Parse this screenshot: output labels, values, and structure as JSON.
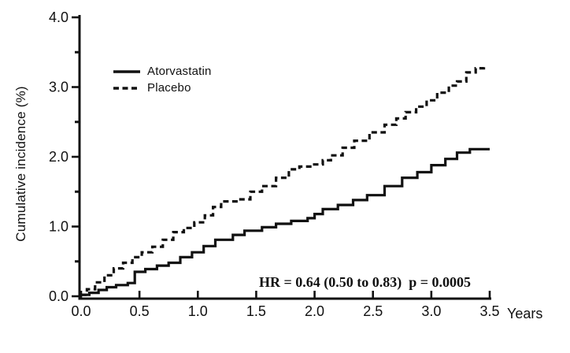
{
  "chart_data": {
    "type": "line",
    "step": true,
    "title": "",
    "xlabel": "Years",
    "ylabel": "Cumulative incidence (%)",
    "annotation": "HR = 0.64 (0.50 to 0.83)  p = 0.0005",
    "xlim": [
      0,
      3.5
    ],
    "ylim": [
      0,
      4.0
    ],
    "x_ticks": [
      0.0,
      0.5,
      1.0,
      1.5,
      2.0,
      2.5,
      3.0,
      3.5
    ],
    "y_ticks": [
      0.0,
      1.0,
      2.0,
      3.0,
      4.0
    ],
    "y_minor_ticks": [
      0.5,
      1.5,
      2.5,
      3.5
    ],
    "grid": false,
    "legend_position": "upper-left-inside",
    "line_color": "#111111",
    "series": [
      {
        "name": "Atorvastatin",
        "line": "solid",
        "points": [
          [
            0,
            0.02
          ],
          [
            0.07,
            0.05
          ],
          [
            0.15,
            0.09
          ],
          [
            0.22,
            0.13
          ],
          [
            0.3,
            0.16
          ],
          [
            0.4,
            0.19
          ],
          [
            0.46,
            0.35
          ],
          [
            0.55,
            0.39
          ],
          [
            0.65,
            0.44
          ],
          [
            0.75,
            0.48
          ],
          [
            0.85,
            0.56
          ],
          [
            0.95,
            0.63
          ],
          [
            1.05,
            0.72
          ],
          [
            1.15,
            0.81
          ],
          [
            1.3,
            0.88
          ],
          [
            1.4,
            0.94
          ],
          [
            1.55,
            0.99
          ],
          [
            1.67,
            1.04
          ],
          [
            1.8,
            1.08
          ],
          [
            1.94,
            1.12
          ],
          [
            2.0,
            1.18
          ],
          [
            2.07,
            1.25
          ],
          [
            2.2,
            1.31
          ],
          [
            2.33,
            1.38
          ],
          [
            2.45,
            1.45
          ],
          [
            2.6,
            1.58
          ],
          [
            2.75,
            1.7
          ],
          [
            2.88,
            1.78
          ],
          [
            3.0,
            1.88
          ],
          [
            3.12,
            1.97
          ],
          [
            3.22,
            2.06
          ],
          [
            3.33,
            2.11
          ],
          [
            3.5,
            2.11
          ]
        ]
      },
      {
        "name": "Placebo",
        "line": "dashed",
        "points": [
          [
            0,
            0.02
          ],
          [
            0.05,
            0.1
          ],
          [
            0.12,
            0.2
          ],
          [
            0.2,
            0.3
          ],
          [
            0.28,
            0.4
          ],
          [
            0.36,
            0.48
          ],
          [
            0.44,
            0.56
          ],
          [
            0.52,
            0.63
          ],
          [
            0.61,
            0.71
          ],
          [
            0.7,
            0.81
          ],
          [
            0.79,
            0.92
          ],
          [
            0.88,
            0.98
          ],
          [
            0.97,
            1.06
          ],
          [
            1.06,
            1.16
          ],
          [
            1.13,
            1.28
          ],
          [
            1.2,
            1.36
          ],
          [
            1.35,
            1.39
          ],
          [
            1.45,
            1.5
          ],
          [
            1.55,
            1.58
          ],
          [
            1.67,
            1.7
          ],
          [
            1.78,
            1.82
          ],
          [
            1.87,
            1.86
          ],
          [
            1.98,
            1.89
          ],
          [
            2.07,
            1.95
          ],
          [
            2.14,
            2.02
          ],
          [
            2.24,
            2.13
          ],
          [
            2.34,
            2.23
          ],
          [
            2.47,
            2.35
          ],
          [
            2.6,
            2.46
          ],
          [
            2.7,
            2.55
          ],
          [
            2.78,
            2.64
          ],
          [
            2.87,
            2.72
          ],
          [
            2.96,
            2.81
          ],
          [
            3.05,
            2.92
          ],
          [
            3.15,
            3.02
          ],
          [
            3.22,
            3.08
          ],
          [
            3.3,
            3.21
          ],
          [
            3.38,
            3.27
          ],
          [
            3.45,
            3.33
          ]
        ]
      }
    ]
  }
}
